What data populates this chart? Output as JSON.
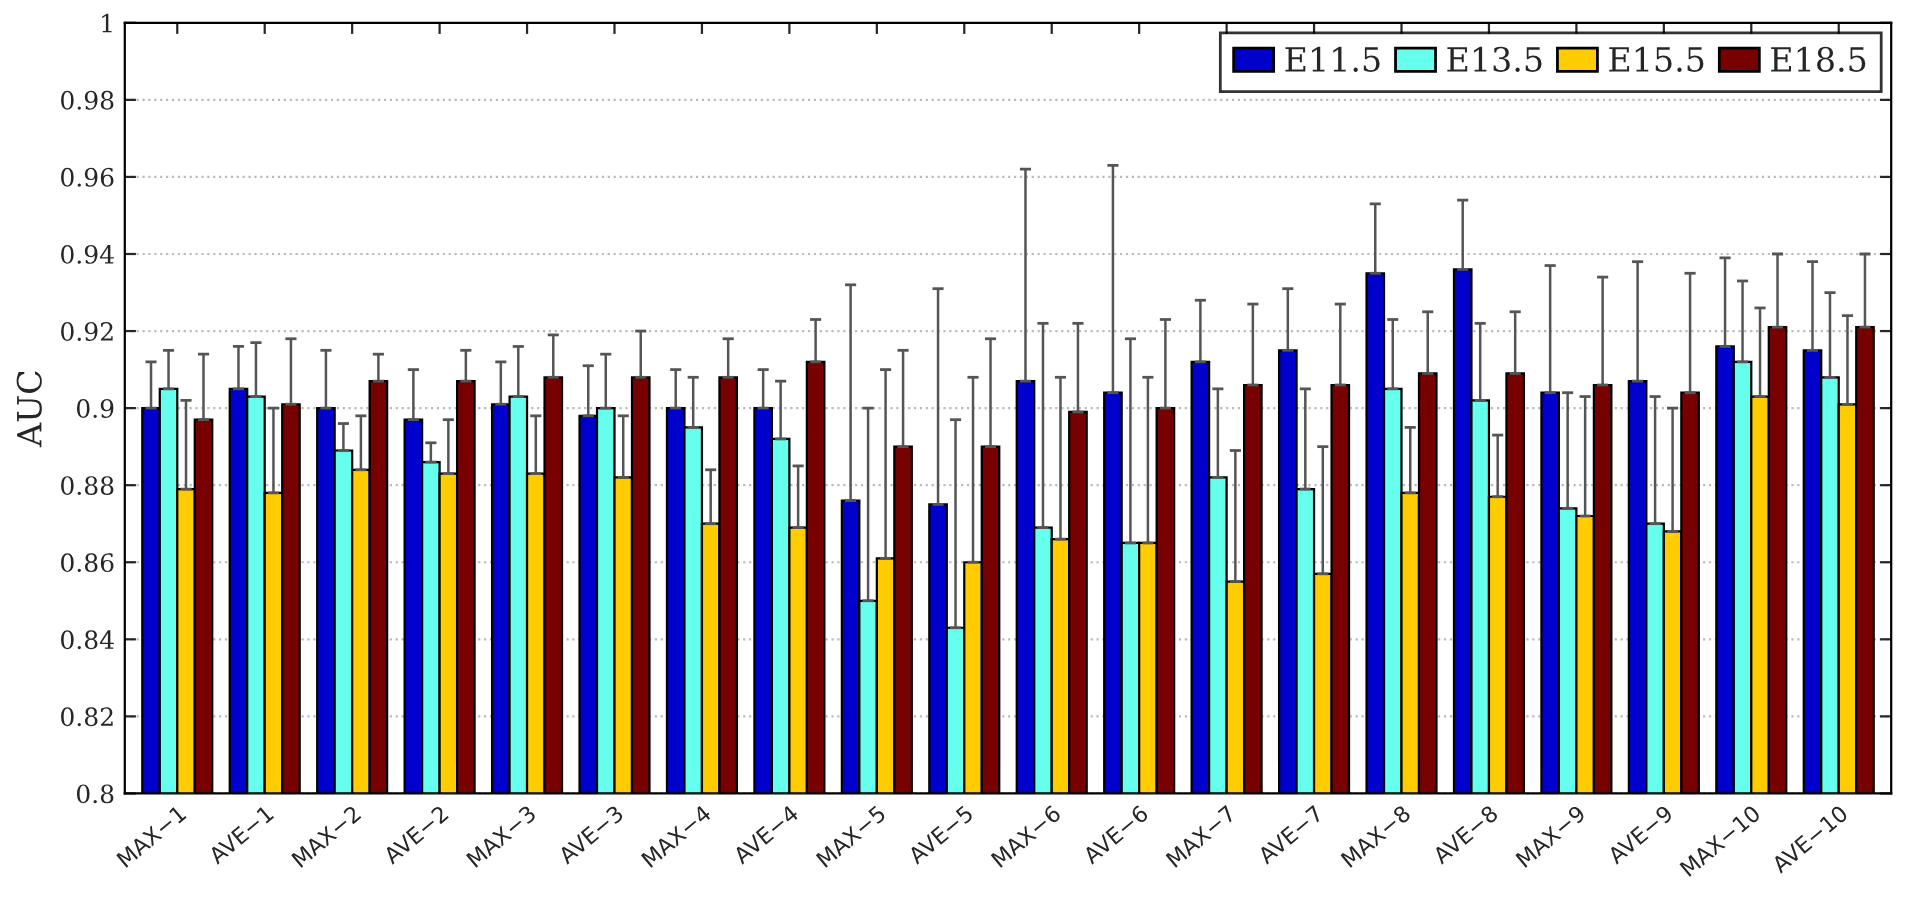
{
  "chart_data": {
    "type": "bar",
    "ylabel": "AUC",
    "categories": [
      "MAX−1",
      "AVE−1",
      "MAX−2",
      "AVE−2",
      "MAX−3",
      "AVE−3",
      "MAX−4",
      "AVE−4",
      "MAX−5",
      "AVE−5",
      "MAX−6",
      "AVE−6",
      "MAX−7",
      "AVE−7",
      "MAX−8",
      "AVE−8",
      "MAX−9",
      "AVE−9",
      "MAX−10",
      "AVE−10"
    ],
    "series": [
      {
        "name": "E11.5",
        "color": "#0000cc",
        "values": [
          0.9,
          0.905,
          0.9,
          0.897,
          0.901,
          0.898,
          0.9,
          0.9,
          0.876,
          0.875,
          0.907,
          0.904,
          0.912,
          0.915,
          0.935,
          0.936,
          0.904,
          0.907,
          0.916,
          0.915
        ],
        "errors": [
          [
            0.9,
            0.912
          ],
          [
            0.905,
            0.916
          ],
          [
            0.9,
            0.915
          ],
          [
            0.897,
            0.91
          ],
          [
            0.901,
            0.912
          ],
          [
            0.898,
            0.911
          ],
          [
            0.9,
            0.91
          ],
          [
            0.9,
            0.91
          ],
          [
            0.876,
            0.932
          ],
          [
            0.875,
            0.931
          ],
          [
            0.907,
            0.962
          ],
          [
            0.904,
            0.963
          ],
          [
            0.912,
            0.928
          ],
          [
            0.915,
            0.931
          ],
          [
            0.935,
            0.953
          ],
          [
            0.936,
            0.954
          ],
          [
            0.904,
            0.937
          ],
          [
            0.907,
            0.938
          ],
          [
            0.916,
            0.939
          ],
          [
            0.915,
            0.938
          ]
        ]
      },
      {
        "name": "E13.5",
        "color": "#66ffee",
        "values": [
          0.905,
          0.903,
          0.889,
          0.886,
          0.903,
          0.9,
          0.895,
          0.892,
          0.85,
          0.843,
          0.869,
          0.865,
          0.882,
          0.879,
          0.905,
          0.902,
          0.874,
          0.87,
          0.912,
          0.908
        ],
        "errors": [
          [
            0.905,
            0.915
          ],
          [
            0.903,
            0.917
          ],
          [
            0.889,
            0.896
          ],
          [
            0.886,
            0.891
          ],
          [
            0.903,
            0.916
          ],
          [
            0.9,
            0.914
          ],
          [
            0.895,
            0.908
          ],
          [
            0.892,
            0.907
          ],
          [
            0.85,
            0.9
          ],
          [
            0.843,
            0.897
          ],
          [
            0.869,
            0.922
          ],
          [
            0.865,
            0.918
          ],
          [
            0.882,
            0.905
          ],
          [
            0.879,
            0.905
          ],
          [
            0.905,
            0.923
          ],
          [
            0.902,
            0.922
          ],
          [
            0.874,
            0.904
          ],
          [
            0.87,
            0.903
          ],
          [
            0.912,
            0.933
          ],
          [
            0.908,
            0.93
          ]
        ]
      },
      {
        "name": "E15.5",
        "color": "#ffcc00",
        "values": [
          0.879,
          0.878,
          0.884,
          0.883,
          0.883,
          0.882,
          0.87,
          0.869,
          0.861,
          0.86,
          0.866,
          0.865,
          0.855,
          0.857,
          0.878,
          0.877,
          0.872,
          0.868,
          0.903,
          0.901
        ],
        "errors": [
          [
            0.879,
            0.902
          ],
          [
            0.878,
            0.9
          ],
          [
            0.884,
            0.898
          ],
          [
            0.883,
            0.897
          ],
          [
            0.883,
            0.898
          ],
          [
            0.882,
            0.898
          ],
          [
            0.87,
            0.884
          ],
          [
            0.869,
            0.885
          ],
          [
            0.861,
            0.91
          ],
          [
            0.86,
            0.908
          ],
          [
            0.866,
            0.908
          ],
          [
            0.865,
            0.908
          ],
          [
            0.855,
            0.889
          ],
          [
            0.857,
            0.89
          ],
          [
            0.878,
            0.895
          ],
          [
            0.877,
            0.893
          ],
          [
            0.872,
            0.903
          ],
          [
            0.868,
            0.9
          ],
          [
            0.903,
            0.926
          ],
          [
            0.901,
            0.924
          ]
        ]
      },
      {
        "name": "E18.5",
        "color": "#770000",
        "values": [
          0.897,
          0.901,
          0.907,
          0.907,
          0.908,
          0.908,
          0.908,
          0.912,
          0.89,
          0.89,
          0.899,
          0.9,
          0.906,
          0.906,
          0.909,
          0.909,
          0.906,
          0.904,
          0.921,
          0.921
        ],
        "errors": [
          [
            0.897,
            0.914
          ],
          [
            0.901,
            0.918
          ],
          [
            0.907,
            0.914
          ],
          [
            0.907,
            0.915
          ],
          [
            0.908,
            0.919
          ],
          [
            0.908,
            0.92
          ],
          [
            0.908,
            0.918
          ],
          [
            0.912,
            0.923
          ],
          [
            0.89,
            0.915
          ],
          [
            0.89,
            0.918
          ],
          [
            0.899,
            0.922
          ],
          [
            0.9,
            0.923
          ],
          [
            0.906,
            0.927
          ],
          [
            0.906,
            0.927
          ],
          [
            0.909,
            0.925
          ],
          [
            0.909,
            0.925
          ],
          [
            0.906,
            0.934
          ],
          [
            0.904,
            0.935
          ],
          [
            0.921,
            0.94
          ],
          [
            0.921,
            0.94
          ]
        ]
      }
    ],
    "ylim": [
      0.8,
      1
    ],
    "yticks": [
      {
        "value": 0.8,
        "label": "0.8"
      },
      0.82,
      0.84,
      0.86,
      0.88,
      {
        "value": 0.9,
        "label": "0.9"
      },
      0.92,
      0.94,
      0.96,
      0.98,
      {
        "value": 1,
        "label": "1"
      }
    ],
    "grid": "y",
    "legend": "top right"
  }
}
